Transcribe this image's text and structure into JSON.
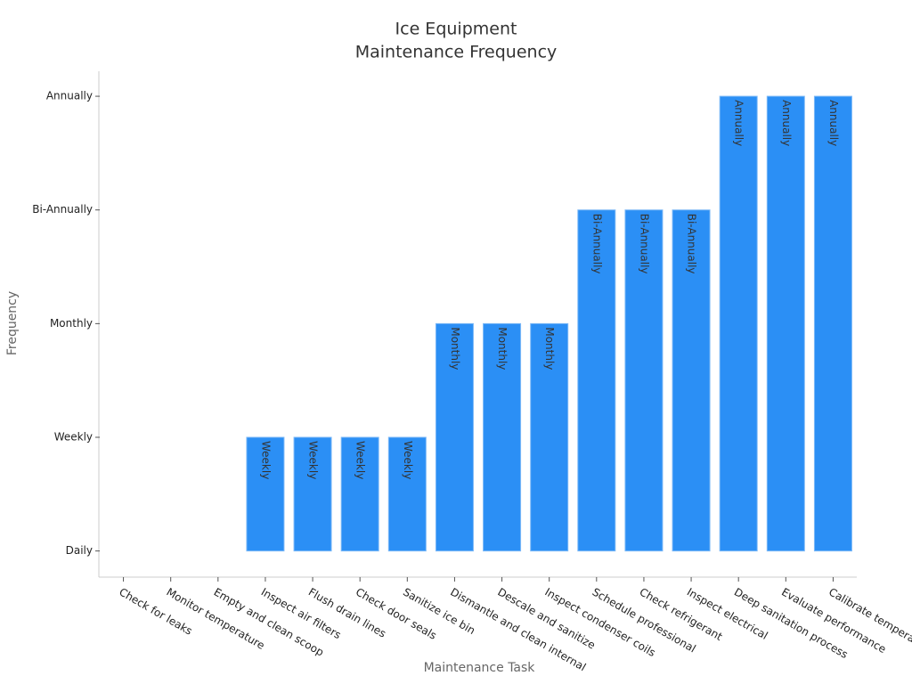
{
  "chart_data": {
    "type": "bar",
    "title": [
      "Ice Equipment",
      "Maintenance Frequency"
    ],
    "x_label": "Maintenance Task",
    "y_label": "Frequency",
    "categories": [
      "Check for leaks",
      "Monitor temperature",
      "Empty and clean scoop",
      "Inspect air filters",
      "Flush drain lines",
      "Check door seals",
      "Sanitize ice bin",
      "Dismantle and clean internal",
      "Descale and sanitize",
      "Inspect condenser coils",
      "Schedule professional",
      "Check refrigerant",
      "Inspect electrical",
      "Deep sanitation process",
      "Evaluate performance",
      "Calibrate temperature"
    ],
    "values": [
      0,
      0,
      0,
      1,
      1,
      1,
      1,
      2,
      2,
      2,
      3,
      3,
      3,
      4,
      4,
      4
    ],
    "value_labels": [
      null,
      null,
      null,
      "Weekly",
      "Weekly",
      "Weekly",
      "Weekly",
      "Monthly",
      "Monthly",
      "Monthly",
      "Bi-Annually",
      "Bi-Annually",
      "Bi-Annually",
      "Annually",
      "Annually",
      "Annually"
    ],
    "color": "#2b8ff5",
    "ylim": [
      -0.23,
      4.22
    ],
    "yticks": [
      {
        "value": 0,
        "label": "Daily"
      },
      {
        "value": 1,
        "label": "Weekly"
      },
      {
        "value": 2,
        "label": "Monthly"
      },
      {
        "value": 3,
        "label": "Bi-Annually"
      },
      {
        "value": 4,
        "label": "Annually"
      }
    ],
    "grid": false
  }
}
